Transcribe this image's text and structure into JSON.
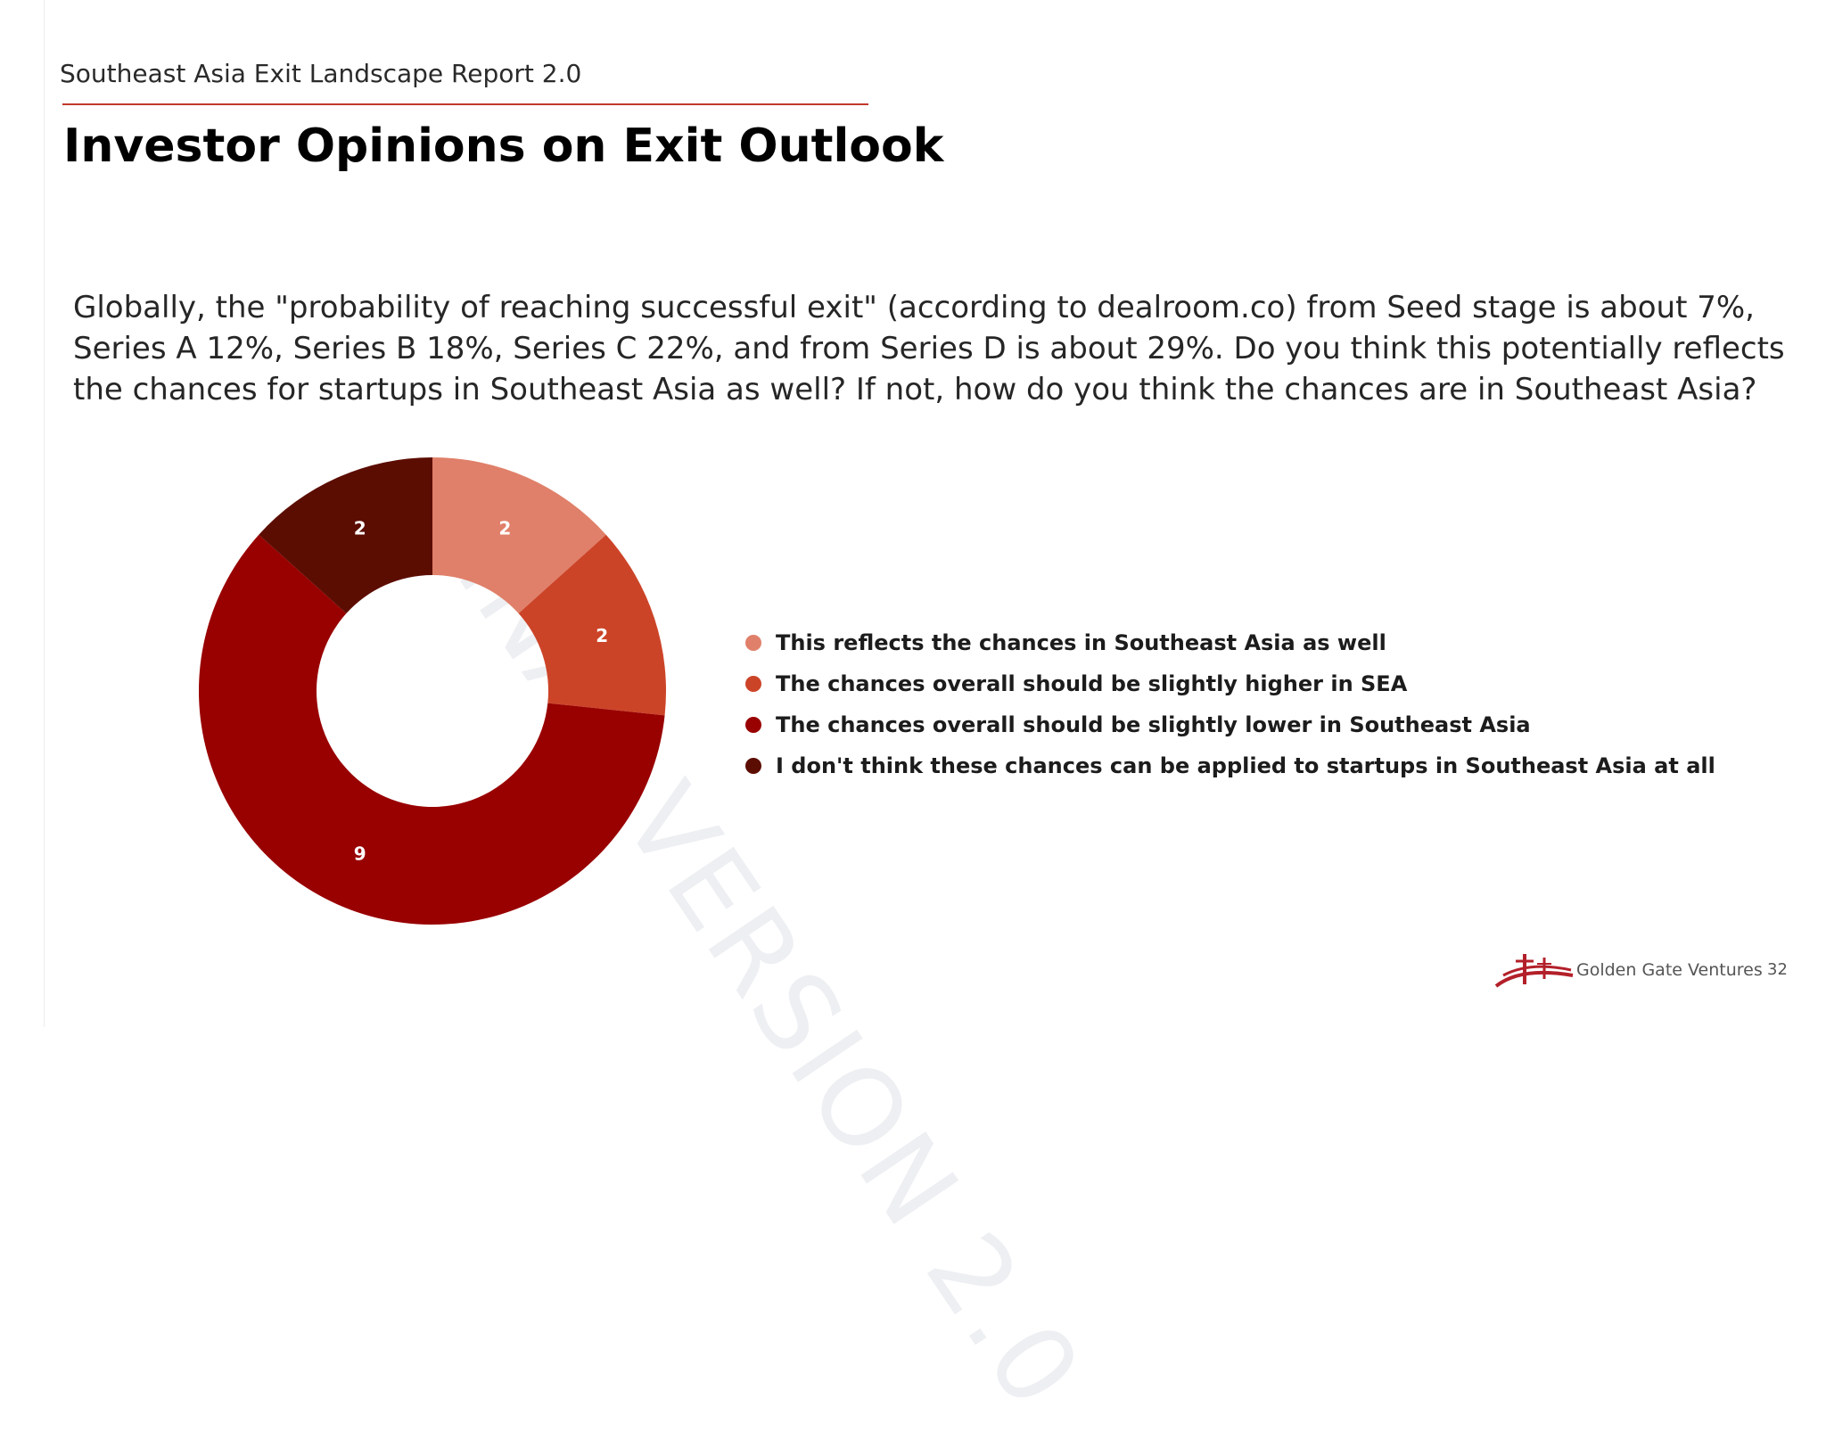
{
  "header": {
    "report_title": "Southeast Asia Exit Landscape Report 2.0",
    "slide_title": "Investor Opinions on Exit Outlook"
  },
  "watermark": "FINAL VERSION 2.0",
  "question": "Globally, the \"probability of reaching successful exit\" (according to dealroom.co) from Seed stage is about 7%, Series A 12%, Series B 18%, Series C 22%, and from Series D is about 29%. Do you think this potentially reflects the chances for startups in Southeast Asia as well? If not, how do you think the chances are in Southeast Asia?",
  "chart_data": {
    "type": "pie",
    "donut": true,
    "categories": [
      "This reflects the chances in Southeast Asia as well",
      "The chances overall should be slightly higher in SEA",
      "The chances overall should be slightly lower in Southeast Asia",
      "I don't think these chances can be applied to startups in Southeast Asia at all"
    ],
    "values": [
      2,
      2,
      9,
      2
    ],
    "colors": [
      "#e0806a",
      "#cc4428",
      "#990000",
      "#5c0d02"
    ],
    "data_labels_shown": true,
    "legend_position": "right"
  },
  "footer": {
    "brand": "Golden Gate Ventures",
    "page_number": "32",
    "logo_color": "#b3202a"
  }
}
